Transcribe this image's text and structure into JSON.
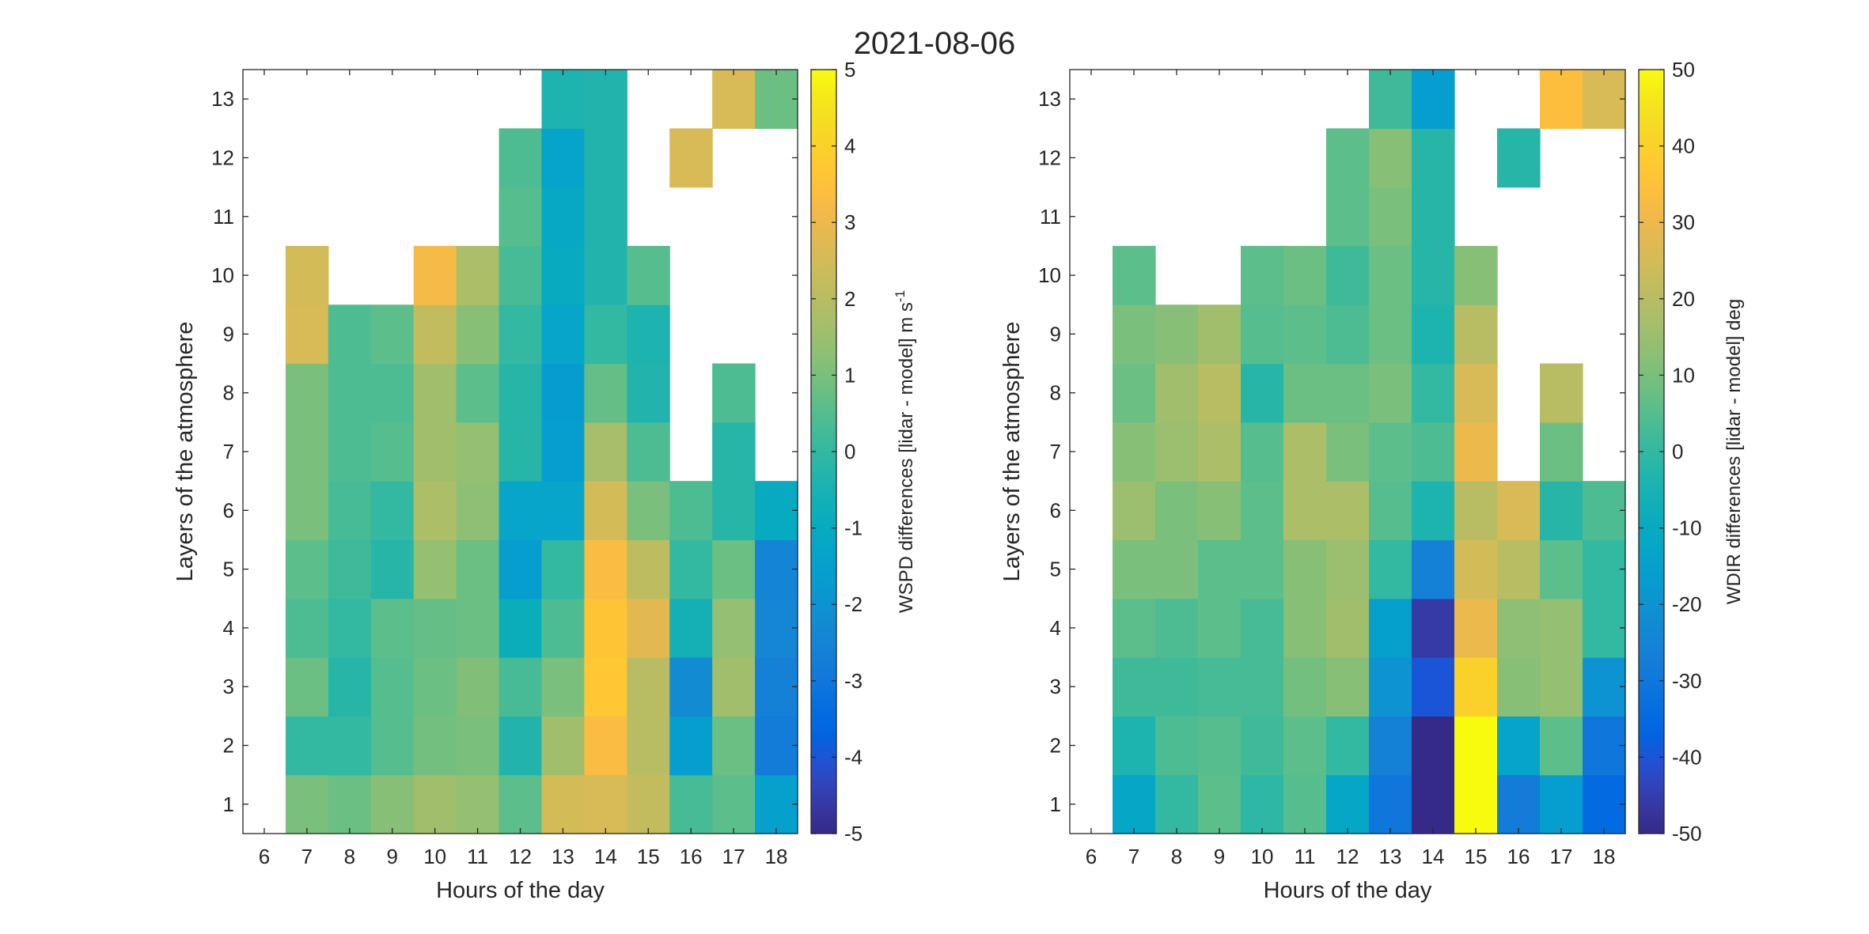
{
  "title": "2021-08-06",
  "chart_data": [
    {
      "type": "heatmap",
      "xlabel": "Hours of the day",
      "ylabel": "Layers of the atmosphere",
      "x": [
        6,
        7,
        8,
        9,
        10,
        11,
        12,
        13,
        14,
        15,
        16,
        17,
        18
      ],
      "y": [
        1,
        2,
        3,
        4,
        5,
        6,
        7,
        8,
        9,
        10,
        11,
        12,
        13
      ],
      "colorbar": {
        "label": "WSPD differences [lidar - model] m s",
        "label_sup": "-1",
        "clim": [
          -5,
          5
        ],
        "ticks": [
          -5,
          -4,
          -3,
          -2,
          -1,
          0,
          1,
          2,
          3,
          4,
          5
        ]
      },
      "values": [
        [
          null,
          1.0,
          0.8,
          1.2,
          1.6,
          1.4,
          0.6,
          2.5,
          2.6,
          2.2,
          0.3,
          0.6,
          -1.5
        ],
        [
          null,
          0.0,
          0.0,
          0.5,
          0.9,
          1.0,
          -0.3,
          1.6,
          3.3,
          2.0,
          -1.6,
          0.8,
          -2.8
        ],
        [
          null,
          0.8,
          -0.2,
          0.5,
          0.8,
          1.1,
          0.3,
          1.0,
          3.7,
          2.0,
          -2.2,
          1.6,
          -2.6
        ],
        [
          null,
          0.4,
          0.0,
          0.6,
          0.7,
          0.8,
          -0.8,
          0.4,
          3.6,
          2.8,
          -0.6,
          1.4,
          -2.4
        ],
        [
          null,
          0.6,
          0.2,
          -0.2,
          1.4,
          0.8,
          -1.6,
          0.0,
          3.3,
          2.1,
          0.0,
          0.8,
          -2.5
        ],
        [
          null,
          1.0,
          0.3,
          0.0,
          1.8,
          1.3,
          -1.3,
          -1.3,
          2.5,
          1.0,
          0.4,
          -0.2,
          -1.0
        ],
        [
          null,
          1.0,
          0.4,
          0.5,
          1.6,
          1.4,
          -0.2,
          -1.6,
          1.7,
          0.4,
          null,
          -0.2,
          null
        ],
        [
          null,
          1.0,
          0.4,
          0.4,
          1.6,
          0.6,
          -0.2,
          -1.7,
          0.7,
          -0.3,
          null,
          0.4,
          null
        ],
        [
          null,
          2.6,
          0.4,
          0.6,
          2.2,
          1.2,
          0.0,
          -1.3,
          0.0,
          -0.4,
          null,
          null,
          null
        ],
        [
          null,
          2.5,
          null,
          null,
          3.2,
          1.8,
          0.3,
          -1.0,
          -0.3,
          0.5,
          null,
          null,
          null
        ],
        [
          null,
          null,
          null,
          null,
          null,
          null,
          0.5,
          -1.1,
          -0.3,
          null,
          null,
          null,
          null
        ],
        [
          null,
          null,
          null,
          null,
          null,
          null,
          0.4,
          -1.4,
          -0.3,
          null,
          2.6,
          null,
          null
        ],
        [
          null,
          null,
          null,
          null,
          null,
          null,
          null,
          -0.4,
          -0.3,
          null,
          null,
          2.6,
          0.8
        ]
      ]
    },
    {
      "type": "heatmap",
      "xlabel": "Hours of the day",
      "ylabel": "Layers of the atmosphere",
      "x": [
        6,
        7,
        8,
        9,
        10,
        11,
        12,
        13,
        14,
        15,
        16,
        17,
        18
      ],
      "y": [
        1,
        2,
        3,
        4,
        5,
        6,
        7,
        8,
        9,
        10,
        11,
        12,
        13
      ],
      "colorbar": {
        "label": "WDIR differences [lidar - model] deg",
        "label_sup": "",
        "clim": [
          -50,
          50
        ],
        "ticks": [
          -50,
          -40,
          -30,
          -20,
          -10,
          0,
          10,
          20,
          30,
          40,
          50
        ]
      },
      "values": [
        [
          null,
          -12,
          0,
          6,
          -1,
          5,
          -12,
          -30,
          -50,
          50,
          -28,
          -16,
          -35
        ],
        [
          null,
          -4,
          4,
          5,
          2,
          6,
          0,
          -26,
          -50,
          50,
          -14,
          6,
          -30
        ],
        [
          null,
          2,
          2,
          3,
          3,
          9,
          12,
          -20,
          -40,
          40,
          12,
          14,
          -20
        ],
        [
          null,
          6,
          4,
          6,
          3,
          12,
          16,
          -15,
          -46,
          30,
          13,
          14,
          0
        ],
        [
          null,
          10,
          10,
          6,
          6,
          12,
          15,
          0,
          -26,
          25,
          20,
          6,
          0
        ],
        [
          null,
          15,
          10,
          12,
          6,
          18,
          18,
          5,
          -4,
          20,
          26,
          -2,
          4
        ],
        [
          null,
          12,
          15,
          18,
          5,
          18,
          10,
          6,
          4,
          30,
          null,
          8,
          null
        ],
        [
          null,
          8,
          16,
          20,
          -2,
          8,
          8,
          10,
          0,
          26,
          null,
          20,
          null
        ],
        [
          null,
          10,
          12,
          16,
          5,
          6,
          4,
          8,
          -4,
          20,
          null,
          null,
          null
        ],
        [
          null,
          6,
          null,
          null,
          6,
          8,
          2,
          8,
          -2,
          12,
          null,
          null,
          null
        ],
        [
          null,
          null,
          null,
          null,
          null,
          null,
          6,
          10,
          -2,
          null,
          null,
          null,
          null
        ],
        [
          null,
          null,
          null,
          null,
          null,
          null,
          6,
          12,
          -2,
          null,
          -2,
          null,
          null
        ],
        [
          null,
          null,
          null,
          null,
          null,
          null,
          null,
          2,
          -16,
          null,
          null,
          34,
          26
        ]
      ]
    }
  ]
}
